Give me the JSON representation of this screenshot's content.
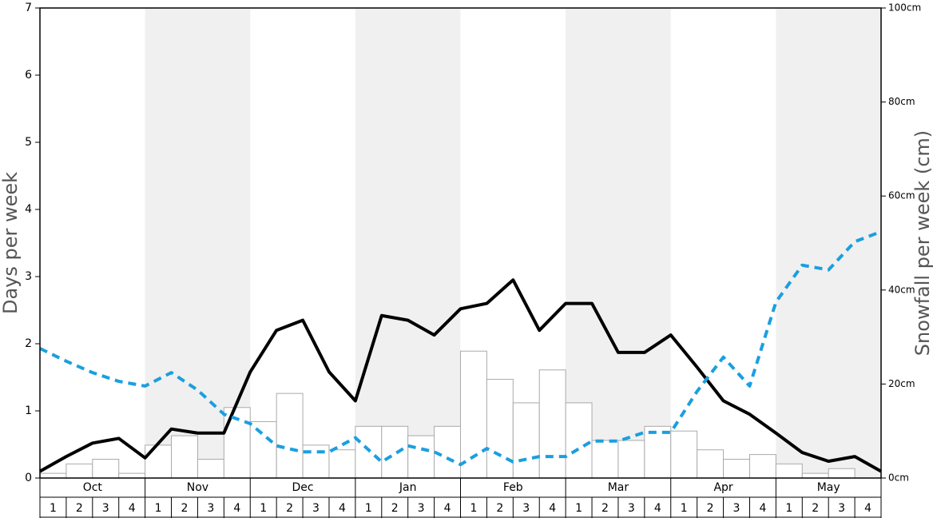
{
  "chart_data": {
    "type": "combo",
    "y_label": "Days per week",
    "y2_label": "Snowfall per week (cm)",
    "months": [
      "Oct",
      "Nov",
      "Dec",
      "Jan",
      "Feb",
      "Mar",
      "Apr",
      "May"
    ],
    "weeks": [
      "1",
      "2",
      "3",
      "4"
    ],
    "ylim": [
      0,
      7
    ],
    "yticks": [
      0,
      1,
      2,
      3,
      4,
      5,
      6,
      7
    ],
    "y2lim": [
      0,
      100
    ],
    "y2ticks": [
      {
        "value": 0,
        "label": "0cm"
      },
      {
        "value": 20,
        "label": "20cm"
      },
      {
        "value": 40,
        "label": "40cm"
      },
      {
        "value": 60,
        "label": "60cm"
      },
      {
        "value": 80,
        "label": "80cm"
      },
      {
        "value": 100,
        "label": "100cm"
      }
    ],
    "series": [
      {
        "type": "bar",
        "axis": "y2",
        "color": "#ffffff",
        "edge": "#aaaaaa",
        "values": [
          1,
          3,
          4,
          1,
          7,
          9,
          4,
          15,
          12,
          18,
          7,
          6,
          11,
          11,
          9,
          11,
          27,
          21,
          16,
          23,
          16,
          8,
          8,
          11,
          10,
          6,
          4,
          5,
          3,
          1,
          2,
          0
        ]
      },
      {
        "type": "line",
        "color": "#000000",
        "dashed": false,
        "values": [
          0.1,
          0.32,
          0.52,
          0.59,
          0.3,
          0.73,
          0.67,
          0.67,
          1.58,
          2.2,
          2.35,
          1.58,
          1.15,
          2.42,
          2.35,
          2.13,
          2.52,
          2.6,
          2.95,
          2.2,
          2.6,
          2.6,
          1.87,
          1.87,
          2.13,
          1.65,
          1.15,
          0.95,
          0.67,
          0.38,
          0.25,
          0.32,
          0.1
        ]
      },
      {
        "type": "line",
        "color": "#1a9fe0",
        "dashed": true,
        "values": [
          1.93,
          1.74,
          1.57,
          1.44,
          1.37,
          1.57,
          1.31,
          0.95,
          0.81,
          0.48,
          0.39,
          0.39,
          0.6,
          0.24,
          0.48,
          0.39,
          0.2,
          0.44,
          0.24,
          0.32,
          0.32,
          0.55,
          0.55,
          0.68,
          0.68,
          1.29,
          1.8,
          1.37,
          2.62,
          3.17,
          3.1,
          3.52,
          3.67
        ]
      }
    ],
    "shade_color": "#f0f0f0"
  }
}
